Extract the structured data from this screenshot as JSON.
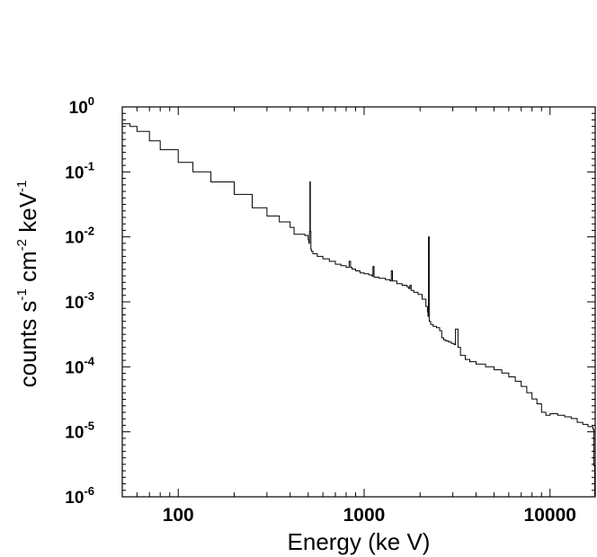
{
  "chart_data": {
    "type": "line",
    "xscale": "log",
    "yscale": "log",
    "xlim": [
      50,
      17500
    ],
    "ylim": [
      1e-06,
      1
    ],
    "xlabel": "Energy (ke V)",
    "ylabel_parts": {
      "base": "counts s",
      "exp1": "-1",
      "mid": " cm",
      "exp2": "-2",
      "end": " keV",
      "exp3": "-1"
    },
    "x_ticks": [
      {
        "value": 100,
        "label": "100"
      },
      {
        "value": 1000,
        "label": "1000"
      },
      {
        "value": 10000,
        "label": "10000"
      }
    ],
    "y_ticks": [
      {
        "value": 1,
        "base": "10",
        "exp": "0"
      },
      {
        "value": 0.1,
        "base": "10",
        "exp": "-1"
      },
      {
        "value": 0.01,
        "base": "10",
        "exp": "-2"
      },
      {
        "value": 0.001,
        "base": "10",
        "exp": "-3"
      },
      {
        "value": 0.0001,
        "base": "10",
        "exp": "-4"
      },
      {
        "value": 1e-05,
        "base": "10",
        "exp": "-5"
      },
      {
        "value": 1e-06,
        "base": "10",
        "exp": "-6"
      }
    ],
    "grid": false,
    "series": [
      {
        "x": [
          50,
          55,
          60,
          70,
          80,
          100,
          120,
          150,
          200,
          250,
          300,
          350,
          400,
          420,
          450,
          480,
          500,
          505,
          508,
          511,
          514,
          517,
          520,
          530,
          560,
          600,
          650,
          700,
          750,
          800,
          830,
          845,
          860,
          900,
          950,
          1000,
          1060,
          1100,
          1115,
          1130,
          1200,
          1300,
          1380,
          1400,
          1420,
          1500,
          1600,
          1700,
          1740,
          1764,
          1790,
          1850,
          1950,
          2050,
          2150,
          2190,
          2205,
          2220,
          2240,
          2280,
          2350,
          2450,
          2550,
          2614,
          2680,
          2750,
          2850,
          2950,
          3050,
          3100,
          3200,
          3300,
          3500,
          3700,
          4000,
          4500,
          5000,
          5500,
          6000,
          6500,
          7000,
          7500,
          8000,
          8500,
          9000,
          9500,
          10000,
          11000,
          12000,
          13000,
          14000,
          15000,
          16000,
          17000,
          17200,
          17400
        ],
        "y": [
          0.55,
          0.5,
          0.42,
          0.3,
          0.22,
          0.14,
          0.1,
          0.07,
          0.045,
          0.028,
          0.021,
          0.017,
          0.014,
          0.011,
          0.011,
          0.0105,
          0.009,
          0.008,
          0.012,
          0.07,
          0.012,
          0.0065,
          0.006,
          0.0055,
          0.005,
          0.0046,
          0.0042,
          0.0038,
          0.0036,
          0.0034,
          0.0042,
          0.0034,
          0.0032,
          0.003,
          0.0028,
          0.0027,
          0.0026,
          0.0025,
          0.0035,
          0.0024,
          0.0023,
          0.0022,
          0.0021,
          0.003,
          0.0021,
          0.0019,
          0.0018,
          0.0017,
          0.0016,
          0.0018,
          0.0015,
          0.0014,
          0.0013,
          0.0011,
          0.00085,
          0.0007,
          0.0006,
          0.01,
          0.0005,
          0.00045,
          0.00042,
          0.0004,
          0.00036,
          0.00028,
          0.00026,
          0.00025,
          0.00024,
          0.00023,
          0.00022,
          0.00038,
          0.0002,
          0.00015,
          0.00013,
          0.00012,
          0.00011,
          0.0001,
          9e-05,
          8e-05,
          7e-05,
          6e-05,
          5e-05,
          4e-05,
          3.2e-05,
          2.7e-05,
          2e-05,
          1.8e-05,
          1.9e-05,
          1.8e-05,
          1.7e-05,
          1.6e-05,
          1.4e-05,
          1.3e-05,
          1.2e-05,
          1.1e-05,
          3e-06,
          1e-06
        ]
      }
    ]
  }
}
